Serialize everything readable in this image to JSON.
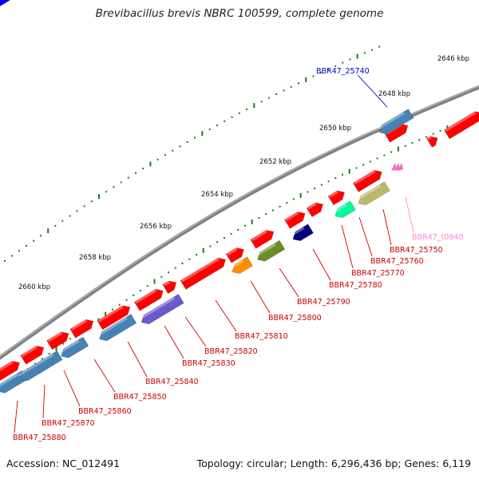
{
  "title": "Brevibacillus brevis NBRC 100599, complete genome",
  "footer": {
    "accession": "Accession: NC_012491",
    "topology": "Topology: circular",
    "length": "Length: 6,296,436 bp",
    "genes": "Genes: 6,119"
  },
  "colors": {
    "forward_gene": "#ff0000",
    "reverse_gene": "#4682b4",
    "backbone": "#808080",
    "tick": "#1a7a1a",
    "label_red": "#cc0000",
    "label_blue": "#0000cc",
    "label_pink": "#ff88cc"
  },
  "kbp_labels": [
    "2646 kbp",
    "2648 kbp",
    "2650 kbp",
    "2652 kbp",
    "2654 kbp",
    "2656 kbp",
    "2658 kbp",
    "2660 kbp"
  ],
  "gene_labels": [
    {
      "text": "BBR47_25740",
      "color": "label_blue"
    },
    {
      "text": "BBR47_t0940",
      "color": "label_pink"
    },
    {
      "text": "BBR47_25750",
      "color": "label_red"
    },
    {
      "text": "BBR47_25760",
      "color": "label_red"
    },
    {
      "text": "BBR47_25770",
      "color": "label_red"
    },
    {
      "text": "BBR47_25780",
      "color": "label_red"
    },
    {
      "text": "BBR47_25790",
      "color": "label_red"
    },
    {
      "text": "BBR47_25800",
      "color": "label_red"
    },
    {
      "text": "BBR47_25810",
      "color": "label_red"
    },
    {
      "text": "BBR47_25820",
      "color": "label_red"
    },
    {
      "text": "BBR47_25830",
      "color": "label_red"
    },
    {
      "text": "BBR47_25840",
      "color": "label_red"
    },
    {
      "text": "BBR47_25850",
      "color": "label_red"
    },
    {
      "text": "BBR47_25860",
      "color": "label_red"
    },
    {
      "text": "BBR47_25870",
      "color": "label_red"
    },
    {
      "text": "BBR47_25880",
      "color": "label_red"
    }
  ],
  "features": [
    {
      "strand": "outer",
      "color": "#ff0000"
    },
    {
      "strand": "outer",
      "color": "#ff0000"
    },
    {
      "strand": "outer",
      "color": "#ff0000"
    },
    {
      "strand": "outer",
      "color": "#ff0000"
    },
    {
      "strand": "outer",
      "color": "#ff0000"
    },
    {
      "strand": "outer",
      "color": "#ff0000"
    },
    {
      "strand": "outer",
      "color": "#ff0000"
    },
    {
      "strand": "outer",
      "color": "#ff0000"
    },
    {
      "strand": "outer",
      "color": "#ff0000"
    },
    {
      "strand": "outer",
      "color": "#ff0000"
    },
    {
      "strand": "outer",
      "color": "#ff0000"
    },
    {
      "strand": "outer",
      "color": "#ff0000"
    },
    {
      "strand": "outer",
      "color": "#ff0000"
    },
    {
      "strand": "outer",
      "color": "#ff0000"
    },
    {
      "strand": "outer",
      "color": "#ff0000"
    },
    {
      "strand": "outer",
      "color": "#ff0000"
    },
    {
      "strand": "outer",
      "color": "#ff0000"
    },
    {
      "strand": "inner",
      "color": "#4682b4"
    },
    {
      "strand": "inner",
      "color": "#4682b4"
    },
    {
      "strand": "inner",
      "color": "#4682b4"
    },
    {
      "strand": "inner",
      "color": "#4682b4"
    },
    {
      "strand": "inner",
      "color": "#6a5acd"
    },
    {
      "strand": "inner",
      "color": "#ff8c00"
    },
    {
      "strand": "inner",
      "color": "#6b8e23"
    },
    {
      "strand": "inner",
      "color": "#000080"
    },
    {
      "strand": "inner",
      "color": "#00fa9a"
    },
    {
      "strand": "inner",
      "color": "#bdb76b"
    },
    {
      "strand": "inner",
      "color": "#ff69b4"
    },
    {
      "strand": "outer",
      "color": "#6b8e23"
    },
    {
      "strand": "outer",
      "color": "#0000ff"
    },
    {
      "strand": "inner",
      "color": "#4682b4"
    }
  ]
}
